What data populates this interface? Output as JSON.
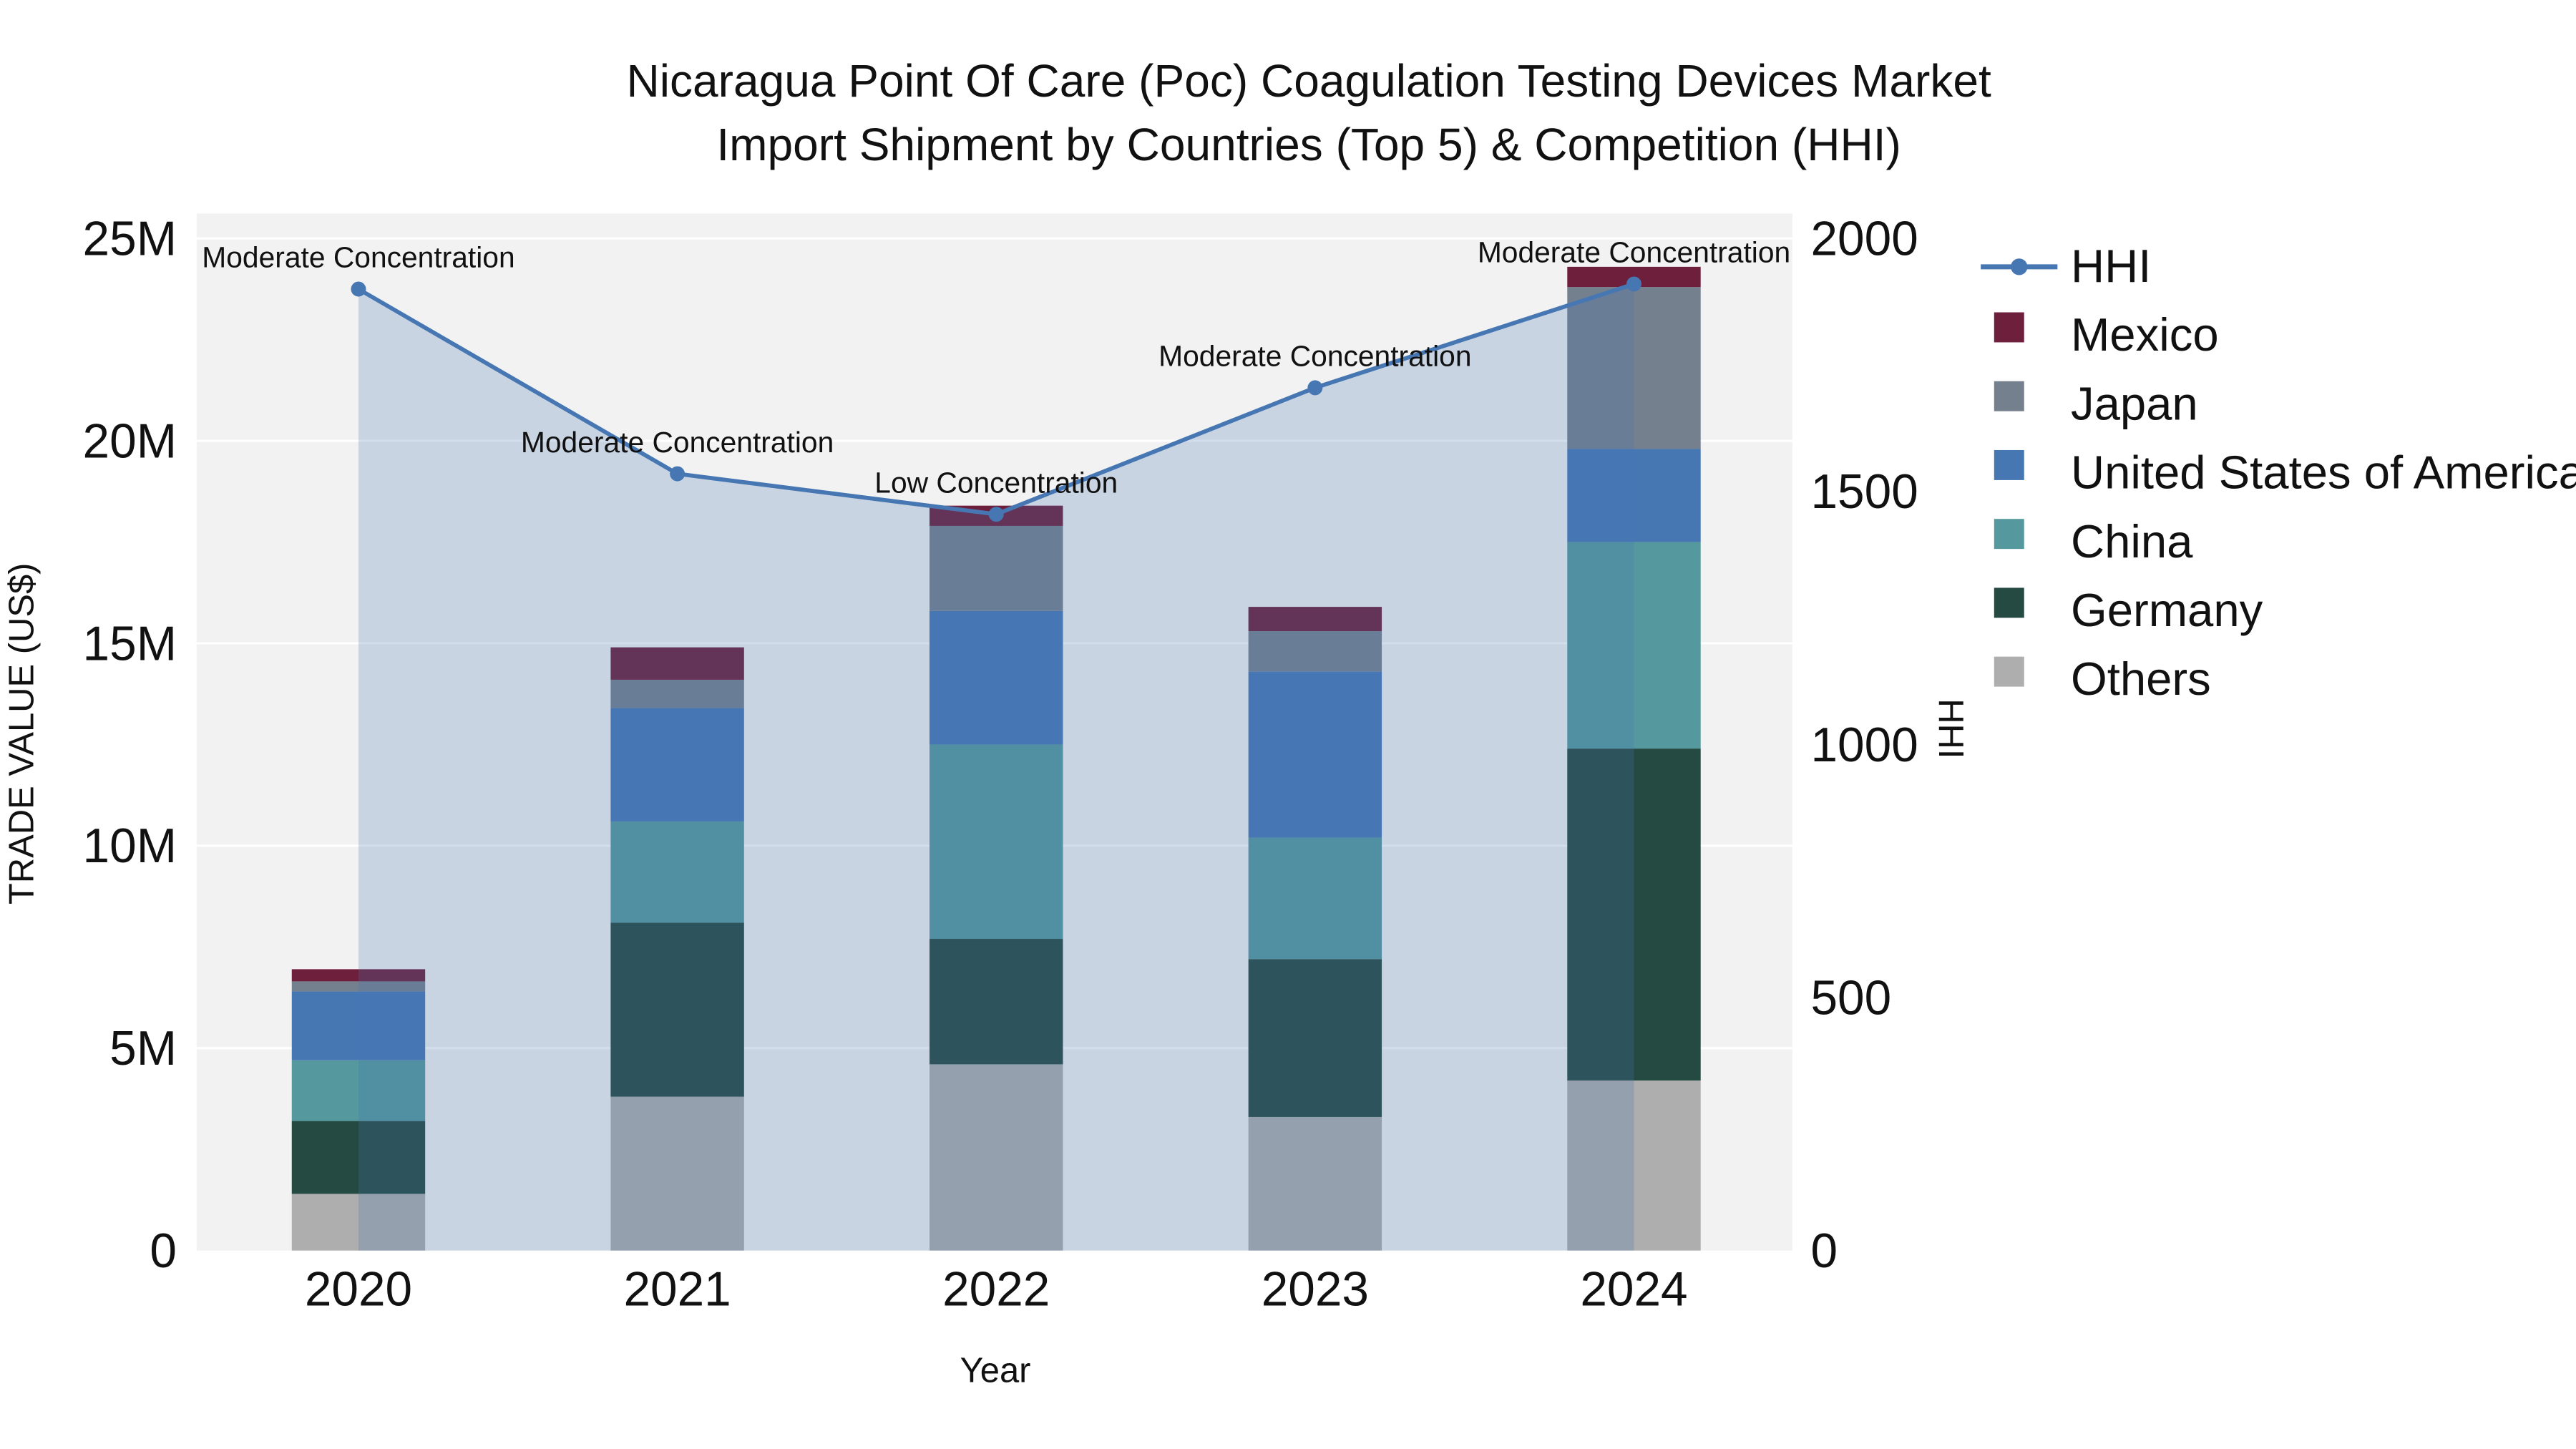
{
  "title": {
    "line1": "Nicaragua Point Of Care (Poc) Coagulation Testing Devices Market",
    "line2": "Import Shipment by Countries (Top 5) & Competition (HHI)"
  },
  "axes": {
    "y_left_label": "TRADE VALUE (US$)",
    "y_right_label": "HHI",
    "x_label": "Year",
    "y_left_ticks": [
      "0",
      "5M",
      "10M",
      "15M",
      "20M",
      "25M"
    ],
    "y_left_tick_values_musd": [
      0,
      5,
      10,
      15,
      20,
      25
    ],
    "y_right_ticks": [
      "0",
      "500",
      "1000",
      "1500",
      "2000"
    ],
    "y_right_tick_values": [
      0,
      500,
      1000,
      1500,
      2000
    ]
  },
  "chart_data": {
    "type": "bar",
    "subtype": "stacked-bars-with-line-overlay",
    "unit": "millions USD (left axis), HHI index (right axis)",
    "categories": [
      "2020",
      "2021",
      "2022",
      "2023",
      "2024"
    ],
    "bar_series_bottom_to_top": [
      {
        "name": "Others",
        "color": "#aeaeae",
        "values_musd": [
          1.4,
          3.8,
          4.6,
          3.3,
          4.2
        ]
      },
      {
        "name": "Germany",
        "color": "#254a42",
        "values_musd": [
          1.8,
          4.3,
          3.1,
          3.9,
          8.2
        ]
      },
      {
        "name": "China",
        "color": "#55999e",
        "values_musd": [
          1.5,
          2.5,
          4.8,
          3.0,
          5.1
        ]
      },
      {
        "name": "United States of America",
        "color": "#4677b3",
        "values_musd": [
          1.7,
          2.8,
          3.3,
          4.1,
          2.3
        ]
      },
      {
        "name": "Japan",
        "color": "#75808f",
        "values_musd": [
          0.25,
          0.7,
          2.1,
          1.0,
          4.0
        ]
      },
      {
        "name": "Mexico",
        "color": "#6e1f3c",
        "values_musd": [
          0.3,
          0.8,
          0.5,
          0.6,
          0.5
        ]
      }
    ],
    "line_series": {
      "name": "HHI",
      "color": "#4677b3",
      "area_fill_color": "#4677b3",
      "area_fill_opacity": 0.24,
      "axis": "right",
      "values": [
        1900,
        1535,
        1455,
        1705,
        1910
      ]
    },
    "annotations": [
      "Moderate Concentration",
      "Moderate Concentration",
      "Low Concentration",
      "Moderate Concentration",
      "Moderate Concentration"
    ],
    "y_left_range_musd": [
      0,
      25
    ],
    "y_right_range": [
      0,
      2000
    ],
    "plot_background": "#f2f2f2",
    "gridlines": "on"
  },
  "legend": {
    "items": [
      {
        "label": "HHI",
        "type": "line",
        "color": "#4677b3"
      },
      {
        "label": "Mexico",
        "type": "square",
        "color": "#6e1f3c"
      },
      {
        "label": "Japan",
        "type": "square",
        "color": "#75808f"
      },
      {
        "label": "United States of America",
        "type": "square",
        "color": "#4677b3"
      },
      {
        "label": "China",
        "type": "square",
        "color": "#55999e"
      },
      {
        "label": "Germany",
        "type": "square",
        "color": "#254a42"
      },
      {
        "label": "Others",
        "type": "square",
        "color": "#aeaeae"
      }
    ]
  }
}
